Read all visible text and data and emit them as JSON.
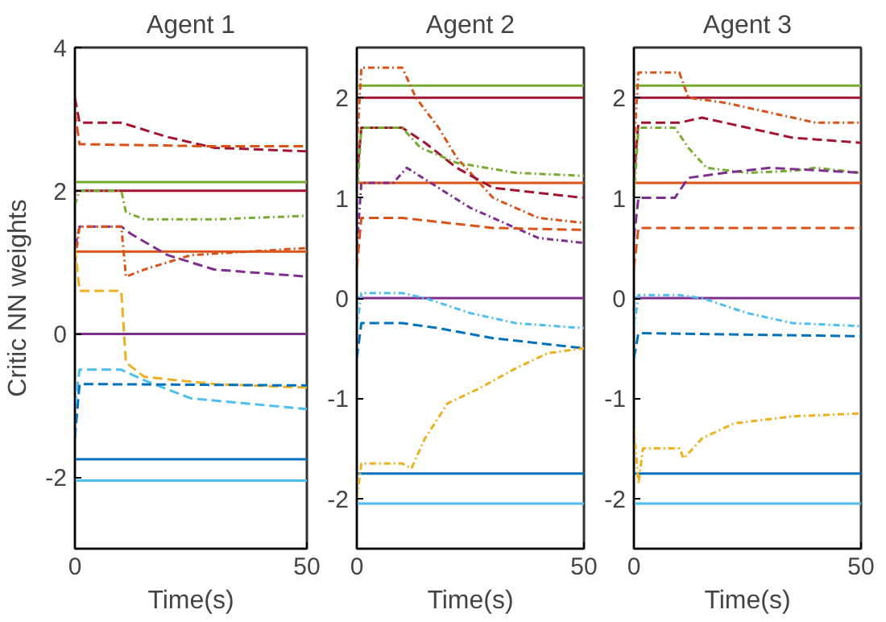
{
  "chart_data": [
    {
      "type": "line",
      "title": "Agent 1",
      "xlabel": "Time(s)",
      "ylabel": "Critic NN weights",
      "xlim": [
        0,
        50
      ],
      "xticks": [
        0,
        50
      ],
      "ylim": [
        -3,
        4
      ],
      "yticks": [
        -2,
        0,
        2,
        4
      ],
      "grid": false,
      "series": [
        {
          "color": "#77ac30",
          "x": [
            0,
            50
          ],
          "values": [
            2.12,
            2.12
          ],
          "line_style": "solid"
        },
        {
          "color": "#a2142f",
          "x": [
            0,
            50
          ],
          "values": [
            2.0,
            2.0
          ],
          "line_style": "solid"
        },
        {
          "color": "#d95319",
          "x": [
            0,
            50
          ],
          "values": [
            1.15,
            1.15
          ],
          "line_style": "solid"
        },
        {
          "color": "#7e2f8e",
          "x": [
            0,
            50
          ],
          "values": [
            0,
            0
          ],
          "line_style": "solid"
        },
        {
          "color": "#0072bd",
          "x": [
            0,
            50
          ],
          "values": [
            -1.75,
            -1.75
          ],
          "line_style": "solid"
        },
        {
          "color": "#4dbeee",
          "x": [
            0,
            50
          ],
          "values": [
            -2.05,
            -2.05
          ],
          "line_style": "solid"
        },
        {
          "color": "#a2142f",
          "x": [
            0,
            1,
            10,
            20,
            30,
            50
          ],
          "values": [
            3.3,
            2.95,
            2.95,
            2.75,
            2.6,
            2.55
          ],
          "line_style": "dashed"
        },
        {
          "color": "#d95319",
          "x": [
            0,
            1,
            30,
            50
          ],
          "values": [
            3.1,
            2.65,
            2.62,
            2.62
          ],
          "line_style": "dashed"
        },
        {
          "color": "#77ac30",
          "x": [
            0,
            1,
            10,
            11,
            15,
            30,
            50
          ],
          "values": [
            1.8,
            2.0,
            2.0,
            1.7,
            1.6,
            1.6,
            1.65
          ],
          "line_style": "dotted"
        },
        {
          "color": "#7e2f8e",
          "x": [
            0,
            1,
            10,
            12,
            20,
            30,
            50
          ],
          "values": [
            1.2,
            1.5,
            1.5,
            1.4,
            1.1,
            0.9,
            0.8
          ],
          "line_style": "dashed"
        },
        {
          "color": "#d95319",
          "x": [
            0,
            1,
            10,
            11,
            15,
            25,
            50
          ],
          "values": [
            1.0,
            1.5,
            1.5,
            0.8,
            0.9,
            1.1,
            1.2
          ],
          "line_style": "dotted"
        },
        {
          "color": "#edb120",
          "x": [
            0,
            1,
            10,
            11,
            15,
            30,
            50
          ],
          "values": [
            1.2,
            0.6,
            0.6,
            -0.4,
            -0.6,
            -0.7,
            -0.75
          ],
          "line_style": "dashed"
        },
        {
          "color": "#4dbeee",
          "x": [
            0,
            1,
            10,
            15,
            25,
            50
          ],
          "values": [
            -1.0,
            -0.5,
            -0.5,
            -0.65,
            -0.9,
            -1.05
          ],
          "line_style": "dashed"
        },
        {
          "color": "#0072bd",
          "x": [
            0,
            1,
            50
          ],
          "values": [
            -1.45,
            -0.7,
            -0.72
          ],
          "line_style": "dashed"
        }
      ]
    },
    {
      "type": "line",
      "title": "Agent 2",
      "xlabel": "Time(s)",
      "xlim": [
        0,
        50
      ],
      "xticks": [
        0,
        50
      ],
      "ylim": [
        -2.5,
        2.5
      ],
      "yticks": [
        -2,
        -1,
        0,
        1,
        2
      ],
      "grid": false,
      "series": [
        {
          "color": "#77ac30",
          "x": [
            0,
            50
          ],
          "values": [
            2.12,
            2.12
          ],
          "line_style": "solid"
        },
        {
          "color": "#a2142f",
          "x": [
            0,
            50
          ],
          "values": [
            2.0,
            2.0
          ],
          "line_style": "solid"
        },
        {
          "color": "#d95319",
          "x": [
            0,
            50
          ],
          "values": [
            1.15,
            1.15
          ],
          "line_style": "solid"
        },
        {
          "color": "#7e2f8e",
          "x": [
            0,
            50
          ],
          "values": [
            0,
            0
          ],
          "line_style": "solid"
        },
        {
          "color": "#0072bd",
          "x": [
            0,
            50
          ],
          "values": [
            -1.75,
            -1.75
          ],
          "line_style": "solid"
        },
        {
          "color": "#4dbeee",
          "x": [
            0,
            50
          ],
          "values": [
            -2.05,
            -2.05
          ],
          "line_style": "solid"
        },
        {
          "color": "#d95319",
          "x": [
            0,
            1,
            10,
            13,
            18,
            22,
            30,
            40,
            50
          ],
          "values": [
            1.5,
            2.3,
            2.3,
            2.0,
            1.7,
            1.4,
            1.0,
            0.8,
            0.75
          ],
          "line_style": "dotted"
        },
        {
          "color": "#a2142f",
          "x": [
            0,
            1,
            10,
            15,
            22,
            30,
            50
          ],
          "values": [
            1.2,
            1.7,
            1.7,
            1.55,
            1.3,
            1.1,
            1.0
          ],
          "line_style": "dashed"
        },
        {
          "color": "#77ac30",
          "x": [
            0,
            1,
            10,
            14,
            22,
            35,
            50
          ],
          "values": [
            1.0,
            1.7,
            1.7,
            1.5,
            1.35,
            1.25,
            1.22
          ],
          "line_style": "dotted"
        },
        {
          "color": "#7e2f8e",
          "x": [
            0,
            1,
            8,
            11,
            18,
            25,
            30,
            40,
            50
          ],
          "values": [
            0.5,
            1.15,
            1.15,
            1.3,
            1.1,
            0.9,
            0.8,
            0.6,
            0.55
          ],
          "line_style": "dotted"
        },
        {
          "color": "#d95319",
          "x": [
            0,
            1,
            10,
            20,
            30,
            50
          ],
          "values": [
            0.3,
            0.8,
            0.8,
            0.75,
            0.7,
            0.68
          ],
          "line_style": "dashed"
        },
        {
          "color": "#4dbeee",
          "x": [
            0,
            1,
            10,
            15,
            25,
            35,
            50
          ],
          "values": [
            -0.3,
            0.05,
            0.05,
            0.0,
            -0.15,
            -0.25,
            -0.3
          ],
          "line_style": "dotted"
        },
        {
          "color": "#0072bd",
          "x": [
            0,
            1,
            10,
            18,
            30,
            50
          ],
          "values": [
            -0.6,
            -0.25,
            -0.25,
            -0.3,
            -0.4,
            -0.5
          ],
          "line_style": "dashed"
        },
        {
          "color": "#edb120",
          "x": [
            0,
            1,
            10,
            12,
            15,
            20,
            27,
            35,
            42,
            50
          ],
          "values": [
            -2.0,
            -1.65,
            -1.65,
            -1.7,
            -1.4,
            -1.05,
            -0.9,
            -0.7,
            -0.55,
            -0.5
          ],
          "line_style": "dotted"
        }
      ]
    },
    {
      "type": "line",
      "title": "Agent 3",
      "xlabel": "Time(s)",
      "xlim": [
        0,
        50
      ],
      "xticks": [
        0,
        50
      ],
      "ylim": [
        -2.5,
        2.5
      ],
      "yticks": [
        -2,
        -1,
        0,
        1,
        2
      ],
      "grid": false,
      "series": [
        {
          "color": "#77ac30",
          "x": [
            0,
            50
          ],
          "values": [
            2.12,
            2.12
          ],
          "line_style": "solid"
        },
        {
          "color": "#a2142f",
          "x": [
            0,
            50
          ],
          "values": [
            2.0,
            2.0
          ],
          "line_style": "solid"
        },
        {
          "color": "#d95319",
          "x": [
            0,
            50
          ],
          "values": [
            1.15,
            1.15
          ],
          "line_style": "solid"
        },
        {
          "color": "#7e2f8e",
          "x": [
            0,
            50
          ],
          "values": [
            0,
            0
          ],
          "line_style": "solid"
        },
        {
          "color": "#0072bd",
          "x": [
            0,
            50
          ],
          "values": [
            -1.75,
            -1.75
          ],
          "line_style": "solid"
        },
        {
          "color": "#4dbeee",
          "x": [
            0,
            50
          ],
          "values": [
            -2.05,
            -2.05
          ],
          "line_style": "solid"
        },
        {
          "color": "#d95319",
          "x": [
            0,
            1,
            10,
            12,
            20,
            30,
            40,
            50
          ],
          "values": [
            1.5,
            2.25,
            2.25,
            2.0,
            1.95,
            1.85,
            1.75,
            1.75
          ],
          "line_style": "dotted"
        },
        {
          "color": "#a2142f",
          "x": [
            0,
            1,
            10,
            15,
            25,
            35,
            50
          ],
          "values": [
            1.2,
            1.75,
            1.75,
            1.8,
            1.7,
            1.6,
            1.55
          ],
          "line_style": "dashed"
        },
        {
          "color": "#77ac30",
          "x": [
            0,
            1,
            9,
            12,
            16,
            25,
            35,
            40,
            50
          ],
          "values": [
            1.0,
            1.7,
            1.7,
            1.5,
            1.3,
            1.25,
            1.27,
            1.3,
            1.25
          ],
          "line_style": "dotted"
        },
        {
          "color": "#7e2f8e",
          "x": [
            0,
            1,
            9,
            12,
            20,
            30,
            50
          ],
          "values": [
            0.6,
            1.0,
            1.0,
            1.2,
            1.25,
            1.3,
            1.25
          ],
          "line_style": "dashed"
        },
        {
          "color": "#d95319",
          "x": [
            0,
            1,
            50
          ],
          "values": [
            0.3,
            0.7,
            0.7
          ],
          "line_style": "dashed"
        },
        {
          "color": "#4dbeee",
          "x": [
            0,
            1,
            10,
            15,
            25,
            35,
            50
          ],
          "values": [
            -0.3,
            0.03,
            0.03,
            0.0,
            -0.15,
            -0.25,
            -0.28
          ],
          "line_style": "dotted"
        },
        {
          "color": "#0072bd",
          "x": [
            0,
            1,
            50
          ],
          "values": [
            -0.6,
            -0.35,
            -0.38
          ],
          "line_style": "dashed"
        },
        {
          "color": "#edb120",
          "x": [
            0,
            1,
            2,
            10,
            11,
            15,
            22,
            35,
            50
          ],
          "values": [
            -1.3,
            -1.85,
            -1.5,
            -1.5,
            -1.6,
            -1.4,
            -1.25,
            -1.18,
            -1.15
          ],
          "line_style": "dotted"
        }
      ]
    }
  ]
}
